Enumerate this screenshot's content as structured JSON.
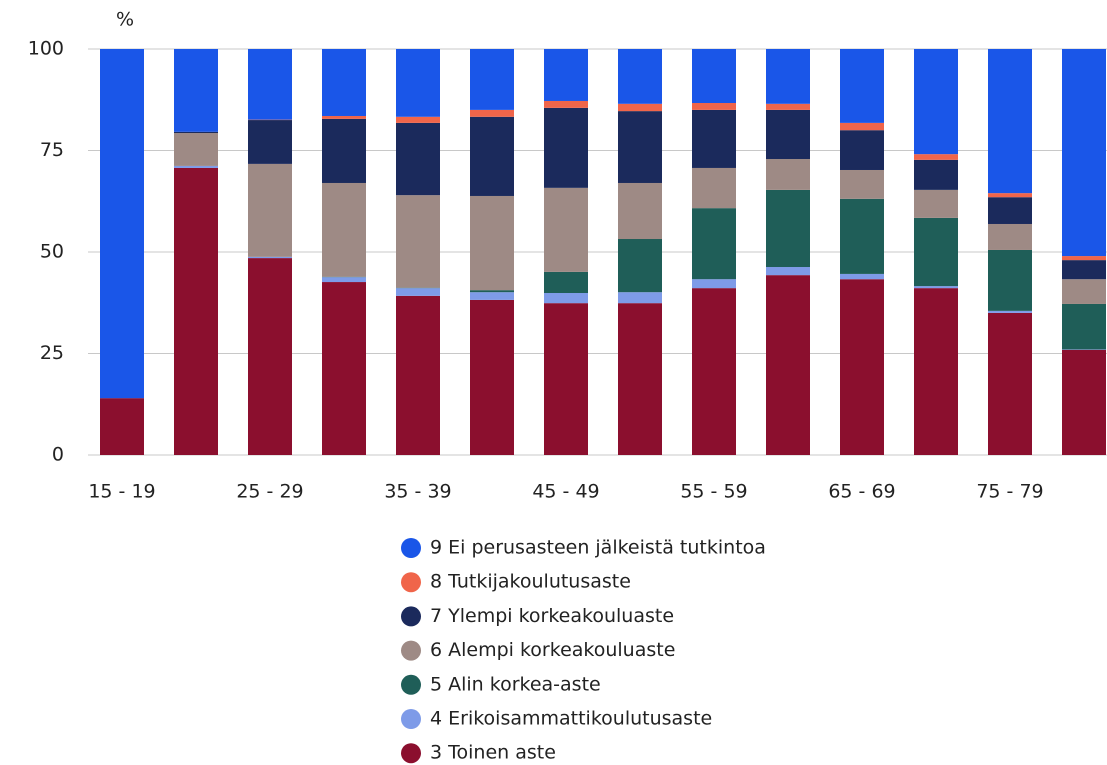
{
  "chart_data": {
    "type": "stacked_bar",
    "y_label": "%",
    "categories": [
      "15 - 19",
      null,
      "25 - 29",
      null,
      "35 - 39",
      null,
      "45 - 49",
      null,
      "55 - 59",
      null,
      "65 - 69",
      null,
      "75 - 79",
      null
    ],
    "series": [
      {
        "name": "9 Ei perusasteen jälkeistä tutkintoa",
        "color": "#1a56e8",
        "values": [
          86,
          20.4,
          17.4,
          16.5,
          16.7,
          15,
          12.8,
          13.5,
          13.3,
          13.5,
          18.2,
          25.9,
          35.5,
          51
        ]
      },
      {
        "name": "8 Tutkijakoulutusaste",
        "color": "#f0654a",
        "values": [
          0,
          0,
          0.1,
          0.7,
          1.5,
          1.7,
          1.7,
          1.8,
          1.7,
          1.5,
          1.8,
          1.4,
          1,
          1
        ]
      },
      {
        "name": "7 Ylempi korkeakouluaste",
        "color": "#1b2a5c",
        "values": [
          0,
          0.3,
          10.8,
          15.8,
          17.8,
          19.5,
          19.7,
          17.7,
          14.3,
          12.1,
          9.8,
          7.4,
          6.6,
          4.7
        ]
      },
      {
        "name": "6 Alempi korkeakouluaste",
        "color": "#9e8a85",
        "values": [
          0,
          8.1,
          22.9,
          23.1,
          22.8,
          23.2,
          20.7,
          13.8,
          9.9,
          7.6,
          7.1,
          6.9,
          6.4,
          6.1
        ]
      },
      {
        "name": "5 Alin korkea-aste",
        "color": "#1f5e58",
        "values": [
          0,
          0,
          0,
          0.1,
          0.1,
          0.5,
          5.2,
          13.1,
          17.5,
          19,
          18.5,
          16.8,
          15,
          11.2
        ]
      },
      {
        "name": "4 Erikoisammattikoulutusaste",
        "color": "#7e9be8",
        "values": [
          0,
          0.5,
          0.3,
          1.2,
          1.9,
          1.9,
          2.5,
          2.7,
          2.2,
          2,
          1.3,
          0.5,
          0.5,
          0.1
        ]
      },
      {
        "name": "3 Toinen aste",
        "color": "#8b0f2e",
        "values": [
          14,
          70.7,
          48.5,
          42.6,
          39.2,
          38.2,
          37.4,
          37.4,
          41.1,
          44.3,
          43.3,
          41.1,
          35,
          25.9
        ]
      }
    ],
    "ylim": [
      0,
      100
    ],
    "yticks": [
      0,
      25,
      50,
      75,
      100
    ],
    "grid": true
  }
}
